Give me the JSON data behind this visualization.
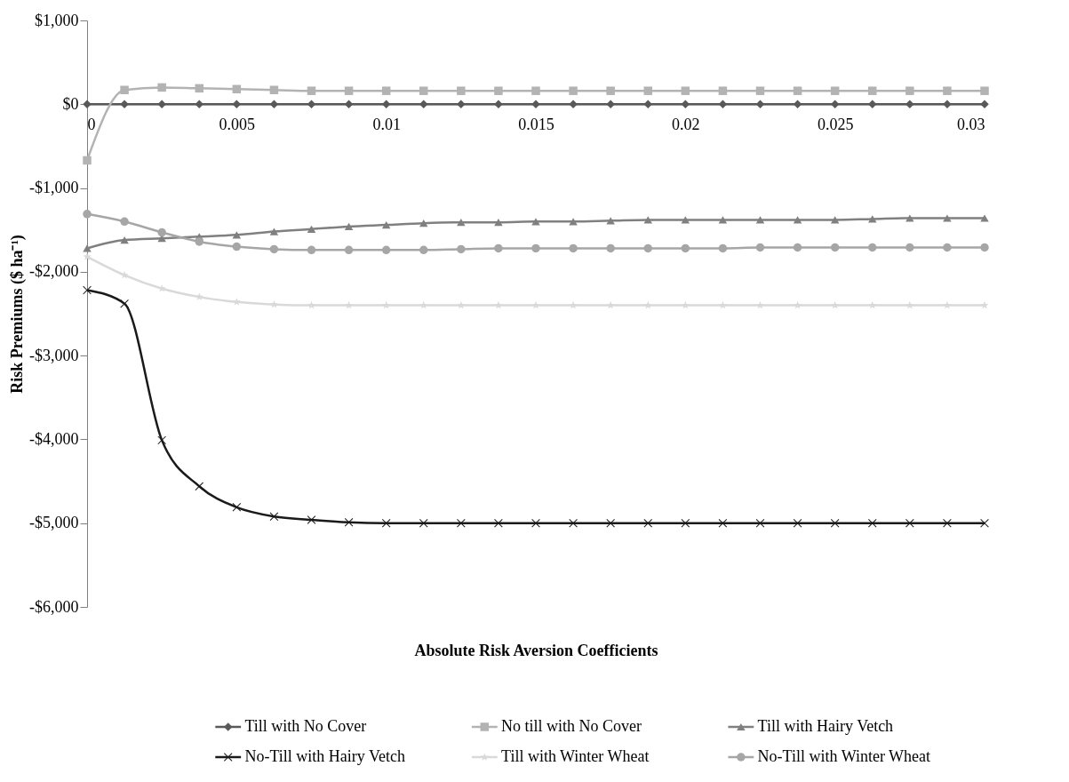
{
  "chart_data": {
    "type": "line",
    "xlabel": "Absolute Risk Aversion Coefficients",
    "ylabel": "Risk Premiums  ($ ha⁻¹)",
    "x": [
      0,
      0.00125,
      0.0025,
      0.00375,
      0.005,
      0.00625,
      0.0075,
      0.00875,
      0.01,
      0.01125,
      0.0125,
      0.01375,
      0.015,
      0.01625,
      0.0175,
      0.01875,
      0.02,
      0.02125,
      0.0225,
      0.02375,
      0.025,
      0.02625,
      0.0275,
      0.02875,
      0.03
    ],
    "series": [
      {
        "name": "Till with No Cover",
        "color": "#595959",
        "marker": "diamond",
        "values": [
          0,
          0,
          0,
          0,
          0,
          0,
          0,
          0,
          0,
          0,
          0,
          0,
          0,
          0,
          0,
          0,
          0,
          0,
          0,
          0,
          0,
          0,
          0,
          0,
          0
        ]
      },
      {
        "name": "No till with No Cover",
        "color": "#b3b3b3",
        "marker": "square",
        "values": [
          -670,
          170,
          200,
          190,
          180,
          170,
          160,
          160,
          160,
          160,
          160,
          160,
          160,
          160,
          160,
          160,
          160,
          160,
          160,
          160,
          160,
          160,
          160,
          160,
          160
        ]
      },
      {
        "name": "Till with Hairy Vetch",
        "color": "#808080",
        "marker": "triangle",
        "values": [
          -1720,
          -1620,
          -1600,
          -1580,
          -1560,
          -1520,
          -1490,
          -1460,
          -1440,
          -1420,
          -1410,
          -1410,
          -1400,
          -1400,
          -1390,
          -1380,
          -1380,
          -1380,
          -1380,
          -1380,
          -1380,
          -1370,
          -1360,
          -1360,
          -1360
        ]
      },
      {
        "name": "No-Till with Hairy Vetch",
        "color": "#1a1a1a",
        "marker": "cross",
        "values": [
          -2220,
          -2380,
          -4010,
          -4560,
          -4810,
          -4920,
          -4960,
          -4990,
          -5000,
          -5000,
          -5000,
          -5000,
          -5000,
          -5000,
          -5000,
          -5000,
          -5000,
          -5000,
          -5000,
          -5000,
          -5000,
          -5000,
          -5000,
          -5000,
          -5000
        ]
      },
      {
        "name": "Till with Winter Wheat",
        "color": "#d9d9d9",
        "marker": "star",
        "values": [
          -1820,
          -2040,
          -2200,
          -2300,
          -2360,
          -2390,
          -2400,
          -2400,
          -2400,
          -2400,
          -2400,
          -2400,
          -2400,
          -2400,
          -2400,
          -2400,
          -2400,
          -2400,
          -2400,
          -2400,
          -2400,
          -2400,
          -2400,
          -2400,
          -2400
        ]
      },
      {
        "name": "No-Till with Winter Wheat",
        "color": "#a6a6a6",
        "marker": "circle",
        "values": [
          -1310,
          -1400,
          -1530,
          -1640,
          -1700,
          -1730,
          -1740,
          -1740,
          -1740,
          -1740,
          -1730,
          -1720,
          -1720,
          -1720,
          -1720,
          -1720,
          -1720,
          -1720,
          -1710,
          -1710,
          -1710,
          -1710,
          -1710,
          -1710,
          -1710
        ]
      }
    ],
    "xlim": [
      0,
      0.03
    ],
    "xticks": [
      0,
      0.005,
      0.01,
      0.015,
      0.02,
      0.025,
      0.03
    ],
    "ylim": [
      -6000,
      1000
    ],
    "yticks": [
      {
        "value": -6000,
        "label": "-$6,000"
      },
      {
        "value": -5000,
        "label": "-$5,000"
      },
      {
        "value": -4000,
        "label": "-$4,000"
      },
      {
        "value": -3000,
        "label": "-$3,000"
      },
      {
        "value": -2000,
        "label": "-$2,000"
      },
      {
        "value": -1000,
        "label": "-$1,000"
      },
      {
        "value": 0,
        "label": "$0"
      },
      {
        "value": 1000,
        "label": "$1,000"
      }
    ],
    "grid": false,
    "legend": "bottom"
  }
}
